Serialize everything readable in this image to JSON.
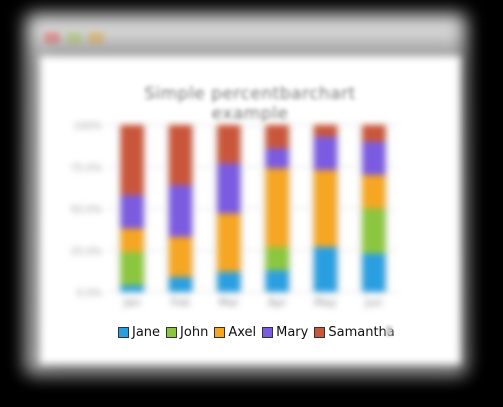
{
  "window": {
    "tab_colors": [
      "#e8a0a0",
      "#c8d8a0",
      "#e6c890"
    ]
  },
  "chart_data": {
    "type": "bar",
    "stacked": true,
    "title": "Simple percentbarchart example",
    "categories": [
      "Jan",
      "Feb",
      "Mar",
      "Apr",
      "May",
      "Jun"
    ],
    "ylim": [
      0,
      100
    ],
    "yticks": [
      0,
      25,
      50,
      75,
      100
    ],
    "ytick_labels": [
      "0.0%",
      "25.0%",
      "50.0%",
      "75.0%",
      "100%"
    ],
    "series": [
      {
        "name": "Jane",
        "color": "#2a9fe0",
        "values": [
          4,
          9,
          12,
          13,
          27,
          23
        ]
      },
      {
        "name": "John",
        "color": "#8cc63f",
        "values": [
          20,
          0,
          0,
          14,
          0,
          27
        ]
      },
      {
        "name": "Axel",
        "color": "#f5a623",
        "values": [
          14,
          24,
          35,
          47,
          46,
          20
        ]
      },
      {
        "name": "Mary",
        "color": "#7b5be0",
        "values": [
          20,
          31,
          30,
          12,
          20,
          20
        ]
      },
      {
        "name": "Samantha",
        "color": "#c9563a",
        "values": [
          42,
          36,
          23,
          14,
          7,
          10
        ]
      }
    ],
    "legend_position": "bottom",
    "grid": true
  }
}
